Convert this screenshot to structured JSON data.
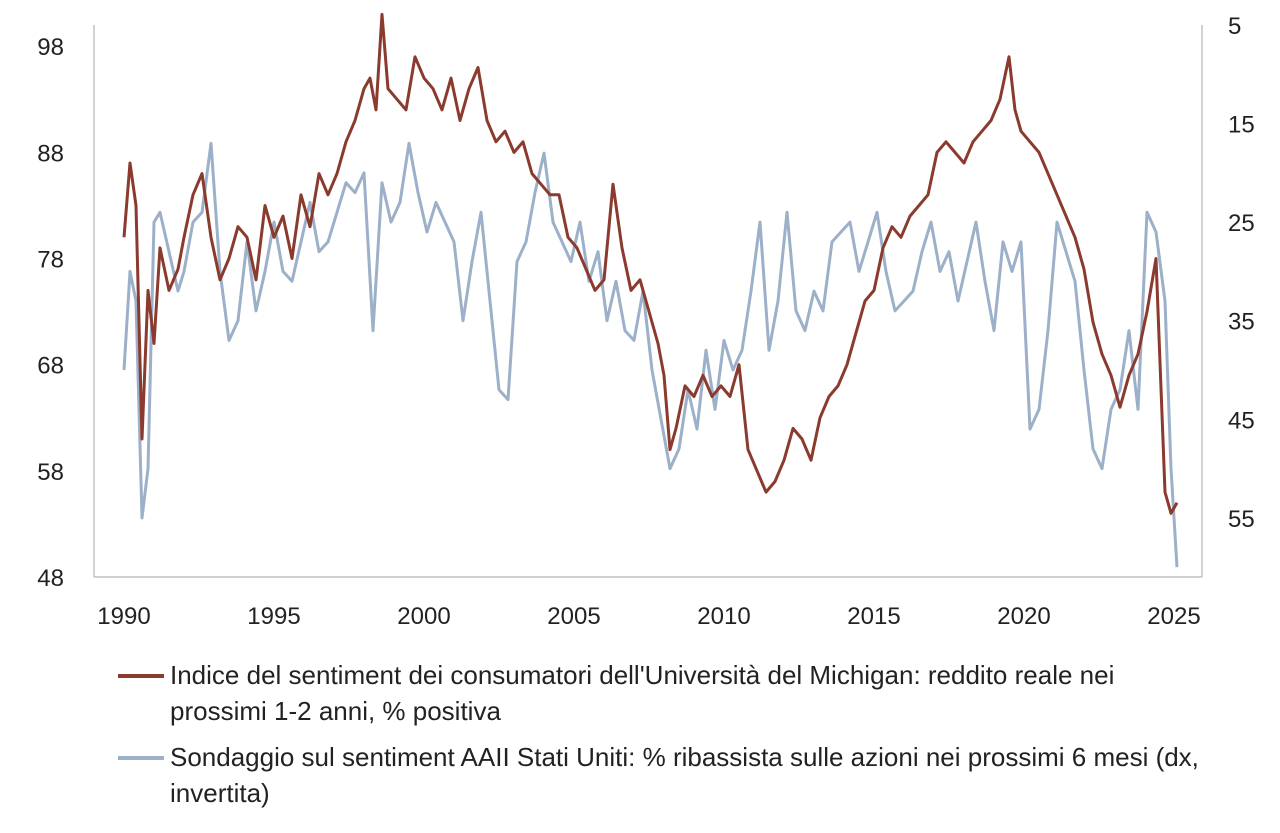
{
  "chart_data": {
    "type": "line",
    "x_ticks": [
      "1990",
      "1995",
      "2000",
      "2005",
      "2010",
      "2015",
      "2020",
      "2025"
    ],
    "xlim": [
      1990,
      2025.2
    ],
    "y_left": {
      "ticks": [
        "98",
        "88",
        "78",
        "68",
        "58",
        "48"
      ],
      "lim": [
        48,
        100
      ]
    },
    "y_right": {
      "ticks": [
        "5",
        "15",
        "25",
        "35",
        "45",
        "55"
      ],
      "lim": [
        5,
        61
      ],
      "inverted": true
    },
    "series": [
      {
        "name": "Indice del sentiment dei consumatori dell'Università del Michigan: reddito reale nei prossimi 1-2 anni, % positiva",
        "axis": "left",
        "color": "#8b3a2e",
        "x": [
          1990.0,
          1990.2,
          1990.4,
          1990.6,
          1990.8,
          1991.0,
          1991.2,
          1991.5,
          1991.8,
          1992.0,
          1992.3,
          1992.6,
          1992.9,
          1993.2,
          1993.5,
          1993.8,
          1994.1,
          1994.4,
          1994.7,
          1995.0,
          1995.3,
          1995.6,
          1995.9,
          1996.2,
          1996.5,
          1996.8,
          1997.1,
          1997.4,
          1997.7,
          1998.0,
          1998.2,
          1998.4,
          1998.6,
          1998.8,
          1999.1,
          1999.4,
          1999.7,
          2000.0,
          2000.3,
          2000.6,
          2000.9,
          2001.2,
          2001.5,
          2001.8,
          2002.1,
          2002.4,
          2002.7,
          2003.0,
          2003.3,
          2003.6,
          2003.9,
          2004.2,
          2004.5,
          2004.8,
          2005.1,
          2005.4,
          2005.7,
          2006.0,
          2006.3,
          2006.6,
          2006.9,
          2007.2,
          2007.5,
          2007.8,
          2008.0,
          2008.2,
          2008.4,
          2008.7,
          2009.0,
          2009.3,
          2009.6,
          2009.9,
          2010.2,
          2010.5,
          2010.8,
          2011.1,
          2011.4,
          2011.7,
          2012.0,
          2012.3,
          2012.6,
          2012.9,
          2013.2,
          2013.5,
          2013.8,
          2014.1,
          2014.4,
          2014.7,
          2015.0,
          2015.3,
          2015.6,
          2015.9,
          2016.2,
          2016.5,
          2016.8,
          2017.1,
          2017.4,
          2017.7,
          2018.0,
          2018.3,
          2018.6,
          2018.9,
          2019.2,
          2019.5,
          2019.7,
          2019.9,
          2020.2,
          2020.5,
          2020.8,
          2021.1,
          2021.4,
          2021.7,
          2022.0,
          2022.3,
          2022.6,
          2022.9,
          2023.2,
          2023.5,
          2023.8,
          2024.1,
          2024.4,
          2024.7,
          2024.9,
          2025.1
        ],
        "values": [
          80,
          87,
          83,
          61,
          75,
          70,
          79,
          75,
          77,
          80,
          84,
          86,
          80,
          76,
          78,
          81,
          80,
          76,
          83,
          80,
          82,
          78,
          84,
          81,
          86,
          84,
          86,
          89,
          91,
          94,
          95,
          92,
          101,
          94,
          93,
          92,
          97,
          95,
          94,
          92,
          95,
          91,
          94,
          96,
          91,
          89,
          90,
          88,
          89,
          86,
          85,
          84,
          84,
          80,
          79,
          77,
          75,
          76,
          85,
          79,
          75,
          76,
          73,
          70,
          67,
          60,
          62,
          66,
          65,
          67,
          65,
          66,
          65,
          68,
          60,
          58,
          56,
          57,
          59,
          62,
          61,
          59,
          63,
          65,
          66,
          68,
          71,
          74,
          75,
          79,
          81,
          80,
          82,
          83,
          84,
          88,
          89,
          88,
          87,
          89,
          90,
          91,
          93,
          97,
          92,
          90,
          89,
          88,
          86,
          84,
          82,
          80,
          77,
          72,
          69,
          67,
          64,
          67,
          69,
          73,
          78,
          56,
          54,
          55
        ],
        "ticks_name": "left"
      },
      {
        "name": "Sondaggio sul sentiment AAII Stati Uniti: % ribassista sulle azioni nei prossimi 6 mesi (dx, invertita)",
        "axis": "right",
        "color": "#9cb0c9",
        "x": [
          1990.0,
          1990.2,
          1990.4,
          1990.6,
          1990.8,
          1991.0,
          1991.2,
          1991.5,
          1991.8,
          1992.0,
          1992.3,
          1992.6,
          1992.9,
          1993.2,
          1993.5,
          1993.8,
          1994.1,
          1994.4,
          1994.7,
          1995.0,
          1995.3,
          1995.6,
          1995.9,
          1996.2,
          1996.5,
          1996.8,
          1997.1,
          1997.4,
          1997.7,
          1998.0,
          1998.3,
          1998.6,
          1998.9,
          1999.2,
          1999.5,
          1999.8,
          2000.1,
          2000.4,
          2000.7,
          2001.0,
          2001.3,
          2001.6,
          2001.9,
          2002.2,
          2002.5,
          2002.8,
          2003.1,
          2003.4,
          2003.7,
          2004.0,
          2004.3,
          2004.6,
          2004.9,
          2005.2,
          2005.5,
          2005.8,
          2006.1,
          2006.4,
          2006.7,
          2007.0,
          2007.3,
          2007.6,
          2007.9,
          2008.2,
          2008.5,
          2008.8,
          2009.1,
          2009.4,
          2009.7,
          2010.0,
          2010.3,
          2010.6,
          2010.9,
          2011.2,
          2011.5,
          2011.8,
          2012.1,
          2012.4,
          2012.7,
          2013.0,
          2013.3,
          2013.6,
          2013.9,
          2014.2,
          2014.5,
          2014.8,
          2015.1,
          2015.4,
          2015.7,
          2016.0,
          2016.3,
          2016.6,
          2016.9,
          2017.2,
          2017.5,
          2017.8,
          2018.1,
          2018.4,
          2018.7,
          2019.0,
          2019.3,
          2019.6,
          2019.9,
          2020.2,
          2020.5,
          2020.8,
          2021.1,
          2021.4,
          2021.7,
          2022.0,
          2022.3,
          2022.6,
          2022.9,
          2023.2,
          2023.5,
          2023.8,
          2024.1,
          2024.4,
          2024.7,
          2024.9,
          2025.1
        ],
        "values": [
          40,
          30,
          33,
          55,
          50,
          25,
          24,
          28,
          32,
          30,
          25,
          24,
          17,
          30,
          37,
          35,
          27,
          34,
          30,
          25,
          30,
          31,
          27,
          23,
          28,
          27,
          24,
          21,
          22,
          20,
          36,
          21,
          25,
          23,
          17,
          22,
          26,
          23,
          25,
          27,
          35,
          29,
          24,
          33,
          42,
          43,
          29,
          27,
          22,
          18,
          25,
          27,
          29,
          25,
          31,
          28,
          35,
          31,
          36,
          37,
          32,
          40,
          45,
          50,
          48,
          42,
          46,
          38,
          44,
          37,
          40,
          38,
          32,
          25,
          38,
          33,
          24,
          34,
          36,
          32,
          34,
          27,
          26,
          25,
          30,
          27,
          24,
          30,
          34,
          33,
          32,
          28,
          25,
          30,
          28,
          33,
          29,
          25,
          31,
          36,
          27,
          30,
          27,
          46,
          44,
          36,
          25,
          28,
          31,
          40,
          48,
          50,
          44,
          42,
          36,
          44,
          24,
          26,
          33,
          50,
          60
        ]
      }
    ]
  }
}
